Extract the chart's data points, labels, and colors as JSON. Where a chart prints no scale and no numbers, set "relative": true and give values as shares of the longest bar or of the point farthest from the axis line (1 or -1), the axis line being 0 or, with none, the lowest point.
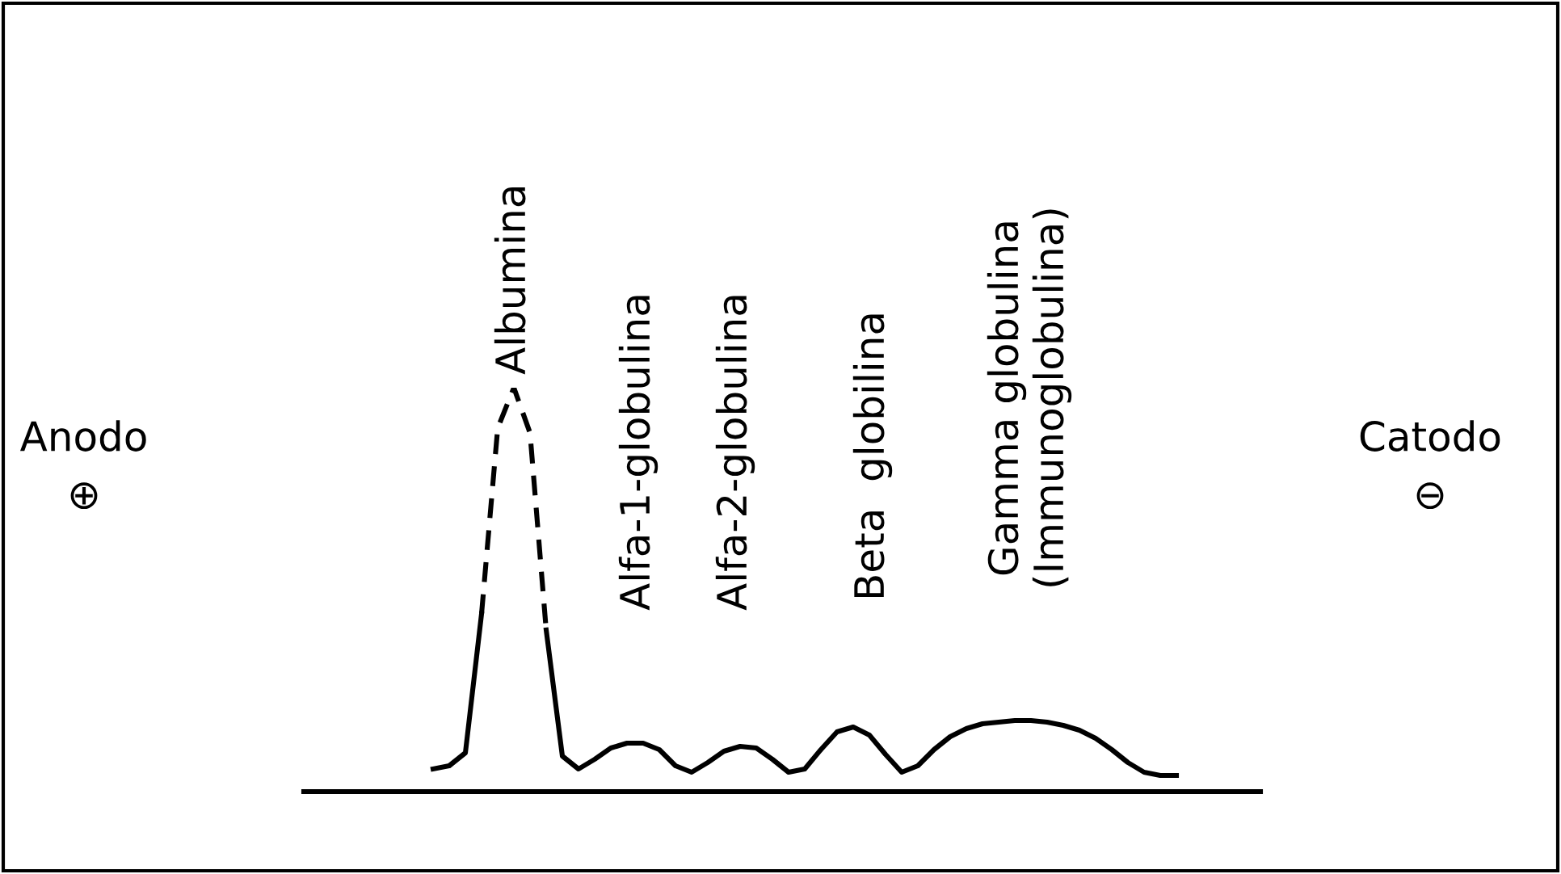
{
  "chart_data": {
    "type": "line",
    "relative": true,
    "categories": [
      null,
      null,
      null,
      null,
      null,
      null,
      null,
      null,
      null,
      null,
      null,
      null,
      null,
      null,
      null,
      null,
      null,
      null,
      null,
      null,
      null,
      null,
      null,
      null,
      null,
      null,
      null,
      null,
      null,
      null,
      null,
      null,
      null,
      null,
      null,
      null,
      null,
      null,
      null,
      null,
      null,
      null,
      null,
      null,
      null,
      null,
      null
    ],
    "series": [
      {
        "color": "#000000",
        "line_style": "solid",
        "values": [
          0.056,
          0.064,
          0.096,
          0.44,
          null,
          null,
          null,
          0.4,
          0.088,
          0.056,
          0.08,
          0.108,
          0.12,
          0.12,
          0.104,
          0.064,
          0.048,
          0.072,
          0.1,
          0.112,
          0.108,
          0.08,
          0.048,
          0.056,
          0.104,
          0.148,
          0.16,
          0.14,
          0.092,
          0.048,
          0.064,
          0.104,
          0.136,
          0.156,
          0.168,
          0.172,
          0.176,
          0.176,
          0.172,
          0.164,
          0.152,
          0.132,
          0.104,
          0.072,
          0.048,
          0.04,
          0.04
        ]
      },
      {
        "color": "#000000",
        "line_style": "dashed",
        "values": [
          null,
          null,
          null,
          0.44,
          0.9,
          1,
          0.888,
          0.4,
          null,
          null,
          null,
          null,
          null,
          null,
          null,
          null,
          null,
          null,
          null,
          null,
          null,
          null,
          null,
          null,
          null,
          null,
          null,
          null,
          null,
          null,
          null,
          null,
          null,
          null,
          null,
          null,
          null,
          null,
          null,
          null,
          null,
          null,
          null,
          null,
          null,
          null,
          null
        ]
      }
    ],
    "annotations": [
      "Albumina",
      "Alfa-1-globulina",
      "Alfa-2-globulina",
      "Beta  globilina",
      "Gamma globulina\n(Immunoglobulina)",
      "Anodo\n⊕",
      "Catodo\n⊖"
    ],
    "legend": false
  }
}
